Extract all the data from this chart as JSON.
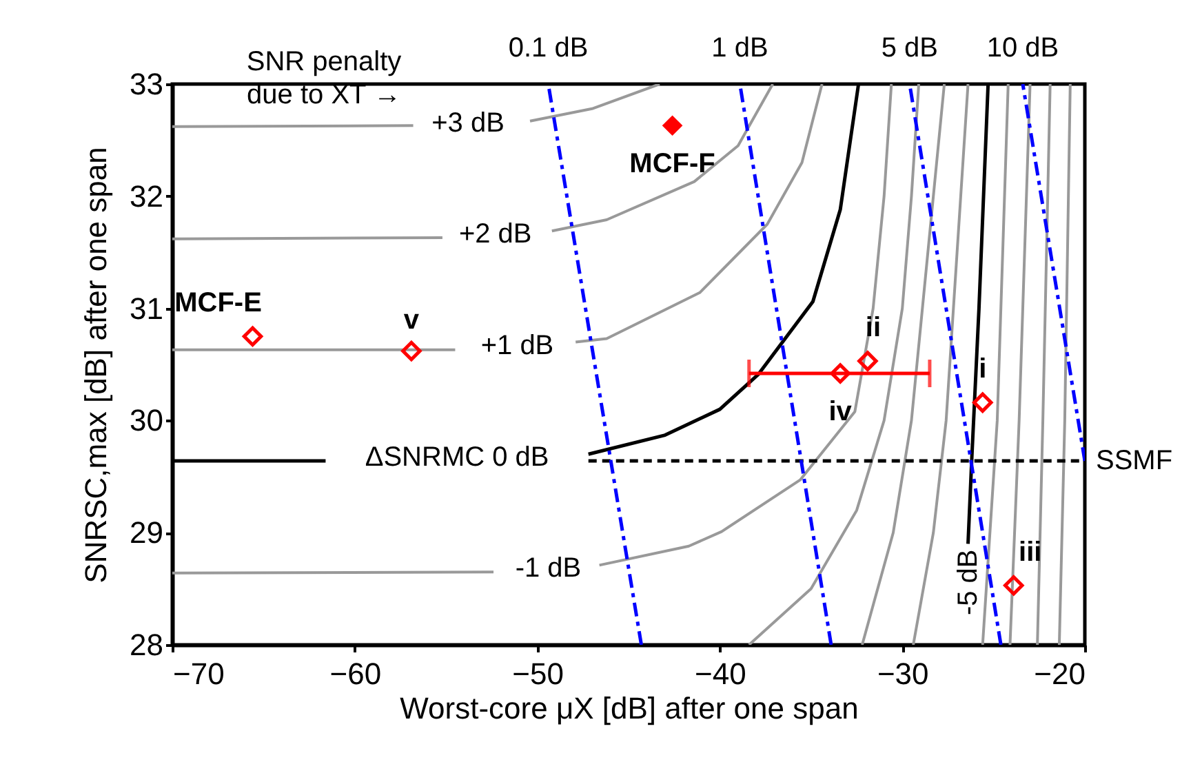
{
  "chart_data": {
    "type": "line",
    "xlabel": "Worst-core μX [dB] after one span",
    "ylabel": "SNRSC,max [dB] after one span",
    "xlim": [
      -70,
      -20
    ],
    "ylim": [
      28,
      33
    ],
    "xticks": [
      -70,
      -60,
      -50,
      -40,
      -30,
      -20
    ],
    "yticks": [
      28,
      29,
      30,
      31,
      32,
      33
    ],
    "grid": false,
    "annotations": [
      "SNR penalty\ndue to XT →"
    ],
    "series": [
      {
        "name": "+3 dB",
        "type": "line",
        "color": "#999999",
        "x": [
          -70,
          -56.8,
          -53.8,
          -50.4,
          -47,
          -43.3
        ],
        "values": [
          32.62,
          32.63,
          null,
          32.67,
          32.78,
          33
        ]
      },
      {
        "name": "+2 dB",
        "type": "line",
        "color": "#999999",
        "x": [
          -70,
          -55.2,
          -52.3,
          -49.2,
          -46.2,
          -41.4,
          -39,
          -37.1
        ],
        "values": [
          31.62,
          31.63,
          null,
          31.69,
          31.79,
          32.13,
          32.45,
          33
        ]
      },
      {
        "name": "+1 dB",
        "type": "line",
        "color": "#999999",
        "x": [
          -70,
          -54.5,
          -51.1,
          -47.9,
          -46.2,
          -41.1,
          -37.4,
          -35.5,
          -34.4
        ],
        "values": [
          30.63,
          30.63,
          null,
          30.7,
          30.73,
          31.14,
          31.75,
          32.3,
          33
        ]
      },
      {
        "name": "ΔSNRMC 0 dB",
        "type": "line",
        "color": "#000000",
        "x": [
          -70,
          -61.6,
          -54.4,
          -47.2,
          -43,
          -40,
          -37.9,
          -34.9,
          -33.4,
          -32.4
        ],
        "values": [
          29.64,
          29.64,
          null,
          29.7,
          29.87,
          30.1,
          30.41,
          31.06,
          31.88,
          33
        ]
      },
      {
        "name": "-1 dB",
        "type": "line",
        "color": "#999999",
        "x": [
          -70,
          -52.4,
          -49.4,
          -46.6,
          -41.7,
          -39.9,
          -35.6,
          -32.6,
          -31.6,
          -31,
          -30.6
        ],
        "values": [
          28.64,
          28.65,
          null,
          28.71,
          28.88,
          29.01,
          29.47,
          30.08,
          31,
          32,
          33
        ]
      },
      {
        "type": "line",
        "color": "#999999",
        "x": [
          -38.4,
          -35,
          -32.5,
          -31,
          -30,
          -29.5,
          -29.1
        ],
        "values": [
          28,
          28.5,
          29.2,
          30,
          31,
          32,
          33
        ]
      },
      {
        "type": "line",
        "color": "#999999",
        "x": [
          -32.2,
          -30.5,
          -29.5,
          -28.6,
          -27.7
        ],
        "values": [
          28,
          29,
          30,
          31.5,
          33
        ]
      },
      {
        "type": "line",
        "color": "#999999",
        "x": [
          -29.4,
          -28.3,
          -27.6,
          -27,
          -26.4
        ],
        "values": [
          28,
          29,
          30,
          31.5,
          33
        ]
      },
      {
        "name": "-5 dB",
        "type": "line",
        "color": "#000000",
        "x": [
          -26.4,
          -26.2,
          -25.8,
          -25.3
        ],
        "values": [
          28.9,
          29.64,
          31,
          33
        ]
      },
      {
        "type": "line",
        "color": "#999999",
        "x": [
          -25.6,
          -24.8,
          -24.2
        ],
        "values": [
          28,
          30,
          33
        ]
      },
      {
        "type": "line",
        "color": "#999999",
        "x": [
          -24.1,
          -23.6,
          -23
        ],
        "values": [
          28,
          30,
          33
        ]
      },
      {
        "type": "line",
        "color": "#999999",
        "x": [
          -22.6,
          -22.3,
          -21.9
        ],
        "values": [
          28,
          30,
          33
        ]
      },
      {
        "type": "line",
        "color": "#999999",
        "x": [
          -21.4,
          -21.1,
          -20.8
        ],
        "values": [
          28,
          30,
          33
        ]
      },
      {
        "name": "SSMF",
        "type": "line",
        "color": "#000000",
        "line_style": "dashed",
        "x": [
          -47.2,
          -20
        ],
        "values": [
          29.64,
          29.64
        ]
      },
      {
        "name": "0.1 dB",
        "type": "line",
        "color": "#0000ff",
        "line_style": "dashdot",
        "x": [
          -44.3,
          -49.4
        ],
        "values": [
          28,
          33
        ]
      },
      {
        "name": "1 dB",
        "type": "line",
        "color": "#0000ff",
        "line_style": "dashdot",
        "x": [
          -33.9,
          -38.9
        ],
        "values": [
          28,
          33
        ]
      },
      {
        "name": "5 dB",
        "type": "line",
        "color": "#0000ff",
        "line_style": "dashdot",
        "x": [
          -24.6,
          -29.6
        ],
        "values": [
          28,
          33
        ]
      },
      {
        "name": "10 dB",
        "type": "line",
        "color": "#0000ff",
        "line_style": "dashdot",
        "x": [
          -20,
          -23.4
        ],
        "values": [
          29.64,
          33
        ]
      },
      {
        "type": "scatter",
        "marker": "diamond",
        "color": "#ff0000",
        "x": [
          -65.6,
          -56.9,
          -33.4,
          -31.9,
          -25.6,
          -23.9
        ],
        "values": [
          30.75,
          30.62,
          30.42,
          30.53,
          30.16,
          28.53
        ],
        "value_labels": [
          "MCF-E",
          "v",
          "iv",
          "ii",
          "i",
          "iii"
        ],
        "xerrors": [
          null,
          null,
          [
            -38.4,
            -28.5
          ],
          null,
          null,
          null
        ]
      },
      {
        "name": "MCF-F",
        "type": "scatter",
        "marker": "diamond",
        "color": "#ff0000",
        "x": [
          -42.6
        ],
        "values": [
          32.63
        ]
      }
    ]
  }
}
